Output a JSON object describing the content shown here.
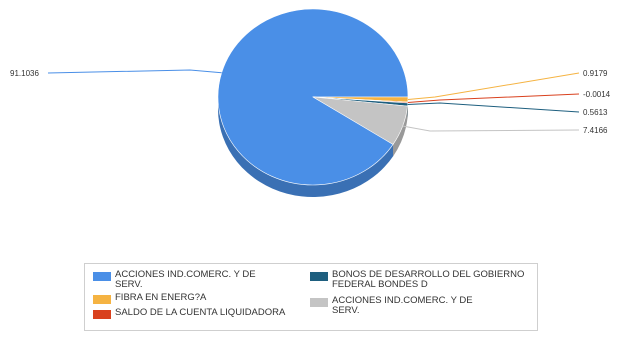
{
  "chart_data": {
    "type": "pie",
    "style": "3d",
    "slices": [
      {
        "label": "ACCIONES IND.COMERC. Y DE SERV.",
        "value": 91.1036,
        "value_text": "91.1036",
        "color": "#4a8fe7"
      },
      {
        "label": "FIBRA EN ENERG?A",
        "value": 0.9179,
        "value_text": "0.9179",
        "color": "#f5b342"
      },
      {
        "label": "SALDO DE LA CUENTA LIQUIDADORA",
        "value": -0.0014,
        "value_text": "-0.0014",
        "color": "#d9411e"
      },
      {
        "label": "BONOS DE DESARROLLO DEL GOBIERNO FEDERAL BONDES D",
        "value": 0.5613,
        "value_text": "0.5613",
        "color": "#1e5f7f"
      },
      {
        "label": "ACCIONES IND.COMERC. Y DE SERV.",
        "value": 7.4166,
        "value_text": "7.4166",
        "color": "#c4c4c4"
      }
    ],
    "legend_position": "bottom"
  },
  "legend": {
    "items": [
      {
        "label": "ACCIONES IND.COMERC. Y DE SERV.",
        "color": "#4a8fe7"
      },
      {
        "label": "FIBRA EN ENERG?A",
        "color": "#f5b342"
      },
      {
        "label": "SALDO DE LA CUENTA LIQUIDADORA",
        "color": "#d9411e"
      },
      {
        "label": "BONOS DE DESARROLLO DEL GOBIERNO FEDERAL BONDES D",
        "color": "#1e5f7f"
      },
      {
        "label": "ACCIONES IND.COMERC. Y DE SERV.",
        "color": "#c4c4c4"
      }
    ]
  }
}
